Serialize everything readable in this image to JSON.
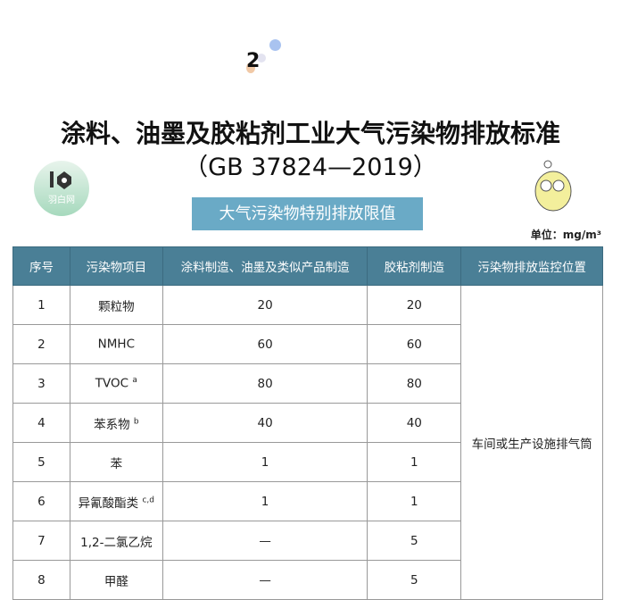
{
  "section_number": "2",
  "title": "涂料、油墨及胶粘剂工业大气污染物排放标准",
  "subtitle": "（GB 37824—2019）",
  "badge": "大气污染物特别排放限值",
  "unit": "单位：mg/m³",
  "logo_text": "羽白网",
  "colors": {
    "header": "#4a7f96",
    "badge": "#6aaac6"
  },
  "table": {
    "headers": [
      "序号",
      "污染物项目",
      "涂料制造、油墨及类似产品制造",
      "胶粘剂制造",
      "污染物排放监控位置"
    ],
    "rows": [
      {
        "no": "1",
        "item": "颗粒物",
        "sup": "",
        "coating": "20",
        "adhesive": "20"
      },
      {
        "no": "2",
        "item": "NMHC",
        "sup": "",
        "coating": "60",
        "adhesive": "60"
      },
      {
        "no": "3",
        "item": "TVOC",
        "sup": "a",
        "coating": "80",
        "adhesive": "80"
      },
      {
        "no": "4",
        "item": "苯系物",
        "sup": "b",
        "coating": "40",
        "adhesive": "40"
      },
      {
        "no": "5",
        "item": "苯",
        "sup": "",
        "coating": "1",
        "adhesive": "1"
      },
      {
        "no": "6",
        "item": "异氰酸酯类",
        "sup": "c,d",
        "coating": "1",
        "adhesive": "1"
      },
      {
        "no": "7",
        "item": "1,2-二氯乙烷",
        "sup": "",
        "coating": "—",
        "adhesive": "5"
      },
      {
        "no": "8",
        "item": "甲醛",
        "sup": "",
        "coating": "—",
        "adhesive": "5"
      }
    ],
    "location": "车间或生产设施排气筒"
  }
}
